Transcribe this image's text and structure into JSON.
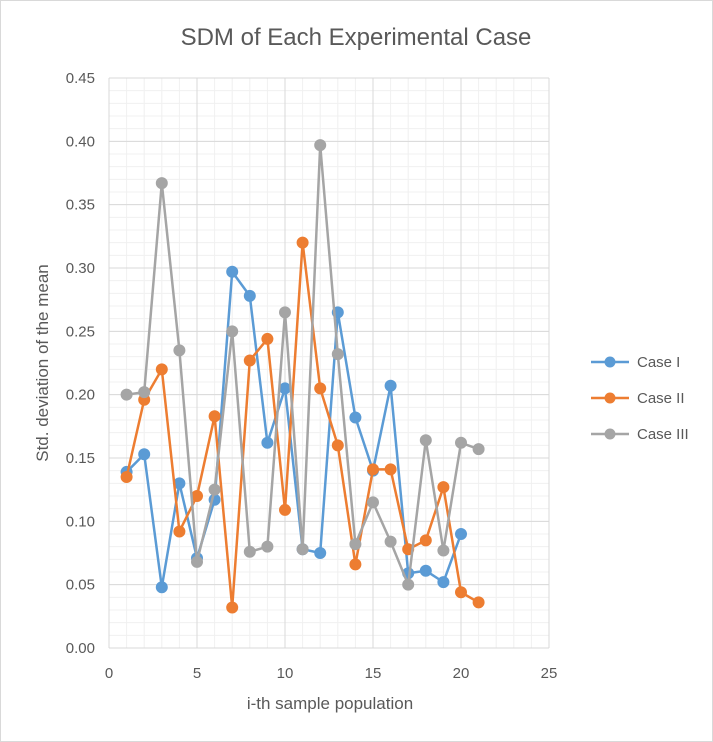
{
  "chart_data": {
    "type": "scatter",
    "title": "SDM of Each Experimental Case",
    "xlabel": "i-th sample population",
    "ylabel": "Std. deviation of the mean",
    "xlim": [
      0,
      25
    ],
    "ylim": [
      0,
      0.45
    ],
    "x_ticks": [
      "0",
      "5",
      "10",
      "15",
      "20",
      "25"
    ],
    "y_ticks": [
      "0.00",
      "0.05",
      "0.10",
      "0.15",
      "0.20",
      "0.25",
      "0.30",
      "0.35",
      "0.40",
      "0.45"
    ],
    "grid": true,
    "legend_position": "right",
    "series": [
      {
        "name": "Case I",
        "color": "#5b9bd5",
        "x": [
          1,
          2,
          3,
          4,
          5,
          6,
          7,
          8,
          9,
          10,
          11,
          12,
          13,
          14,
          15,
          16,
          17,
          18,
          19,
          20
        ],
        "y": [
          0.139,
          0.153,
          0.048,
          0.13,
          0.071,
          0.117,
          0.297,
          0.278,
          0.162,
          0.205,
          0.078,
          0.075,
          0.265,
          0.182,
          0.14,
          0.207,
          0.059,
          0.061,
          0.052,
          0.09
        ]
      },
      {
        "name": "Case II",
        "color": "#ed7d31",
        "x": [
          1,
          2,
          3,
          4,
          5,
          6,
          7,
          8,
          9,
          10,
          11,
          12,
          13,
          14,
          15,
          16,
          17,
          18,
          19,
          20,
          21
        ],
        "y": [
          0.135,
          0.196,
          0.22,
          0.092,
          0.12,
          0.183,
          0.032,
          0.227,
          0.244,
          0.109,
          0.32,
          0.205,
          0.16,
          0.066,
          0.141,
          0.141,
          0.078,
          0.085,
          0.127,
          0.044,
          0.036
        ]
      },
      {
        "name": "Case III",
        "color": "#a5a5a5",
        "x": [
          1,
          2,
          3,
          4,
          5,
          6,
          7,
          8,
          9,
          10,
          11,
          12,
          13,
          14,
          15,
          16,
          17,
          18,
          19,
          20,
          21
        ],
        "y": [
          0.2,
          0.202,
          0.367,
          0.235,
          0.068,
          0.125,
          0.25,
          0.076,
          0.08,
          0.265,
          0.078,
          0.397,
          0.232,
          0.082,
          0.115,
          0.084,
          0.05,
          0.164,
          0.077,
          0.162,
          0.157
        ]
      }
    ]
  }
}
